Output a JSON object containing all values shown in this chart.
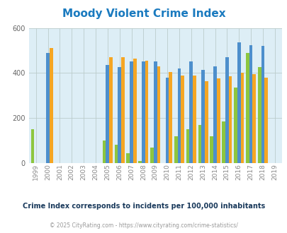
{
  "title": "Moody Violent Crime Index",
  "title_color": "#1a7abf",
  "subtitle": "Crime Index corresponds to incidents per 100,000 inhabitants",
  "subtitle_color": "#1a3a5c",
  "copyright": "© 2025 CityRating.com - https://www.cityrating.com/crime-statistics/",
  "copyright_color": "#999999",
  "years": [
    1999,
    2000,
    2001,
    2002,
    2003,
    2004,
    2005,
    2006,
    2007,
    2008,
    2009,
    2010,
    2011,
    2012,
    2013,
    2014,
    2015,
    2016,
    2017,
    2018,
    2019
  ],
  "moody": [
    150,
    0,
    0,
    0,
    0,
    0,
    100,
    80,
    45,
    10,
    70,
    0,
    120,
    150,
    170,
    120,
    185,
    335,
    490,
    425,
    0
  ],
  "alabama": [
    0,
    490,
    0,
    0,
    0,
    0,
    435,
    425,
    450,
    450,
    450,
    380,
    420,
    450,
    415,
    430,
    470,
    535,
    525,
    520,
    0
  ],
  "national": [
    0,
    510,
    0,
    0,
    0,
    0,
    470,
    470,
    465,
    455,
    430,
    405,
    390,
    390,
    365,
    375,
    385,
    400,
    395,
    380,
    0
  ],
  "moody_color": "#8dc63f",
  "alabama_color": "#4d8fcc",
  "national_color": "#f5a623",
  "plot_bg_color": "#ddeef6",
  "ylim": [
    0,
    600
  ],
  "yticks": [
    0,
    200,
    400,
    600
  ],
  "bar_width": 0.28,
  "grid_color": "#bbcccc"
}
